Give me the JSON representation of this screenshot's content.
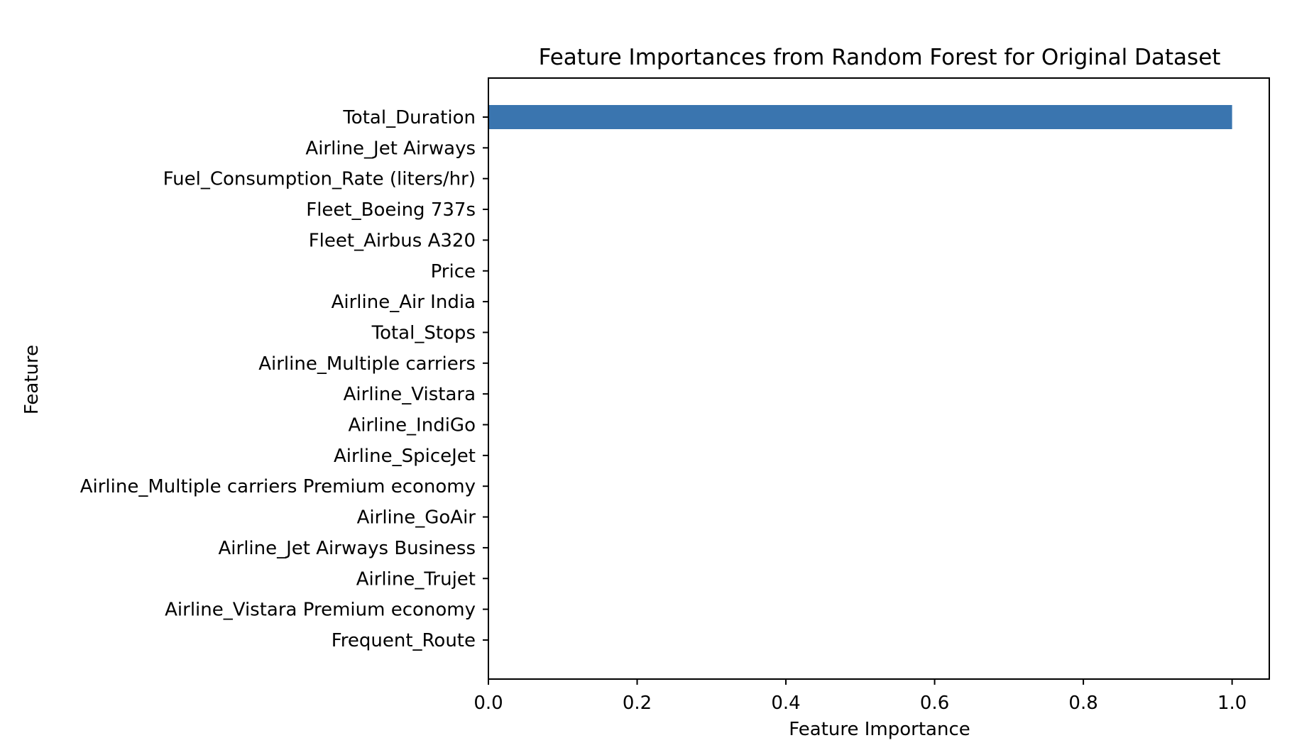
{
  "chart_data": {
    "type": "bar",
    "orientation": "horizontal",
    "title": "Feature Importances from Random Forest for Original Dataset",
    "xlabel": "Feature Importance",
    "ylabel": "Feature",
    "xlim": [
      0,
      1.05
    ],
    "x_ticks": [
      0.0,
      0.2,
      0.4,
      0.6,
      0.8,
      1.0
    ],
    "x_tick_labels": [
      "0.0",
      "0.2",
      "0.4",
      "0.6",
      "0.8",
      "1.0"
    ],
    "grid": false,
    "bar_color": "#3a75af",
    "categories": [
      "Total_Duration",
      "Airline_Jet Airways",
      "Fuel_Consumption_Rate (liters/hr)",
      "Fleet_Boeing 737s",
      "Fleet_Airbus A320",
      "Price",
      "Airline_Air India",
      "Total_Stops",
      "Airline_Multiple carriers",
      "Airline_Vistara",
      "Airline_IndiGo",
      "Airline_SpiceJet",
      "Airline_Multiple carriers Premium economy",
      "Airline_GoAir",
      "Airline_Jet Airways Business",
      "Airline_Trujet",
      "Airline_Vistara Premium economy",
      "Frequent_Route"
    ],
    "values": [
      1.0,
      0,
      0,
      0,
      0,
      0,
      0,
      0,
      0,
      0,
      0,
      0,
      0,
      0,
      0,
      0,
      0,
      0
    ]
  }
}
